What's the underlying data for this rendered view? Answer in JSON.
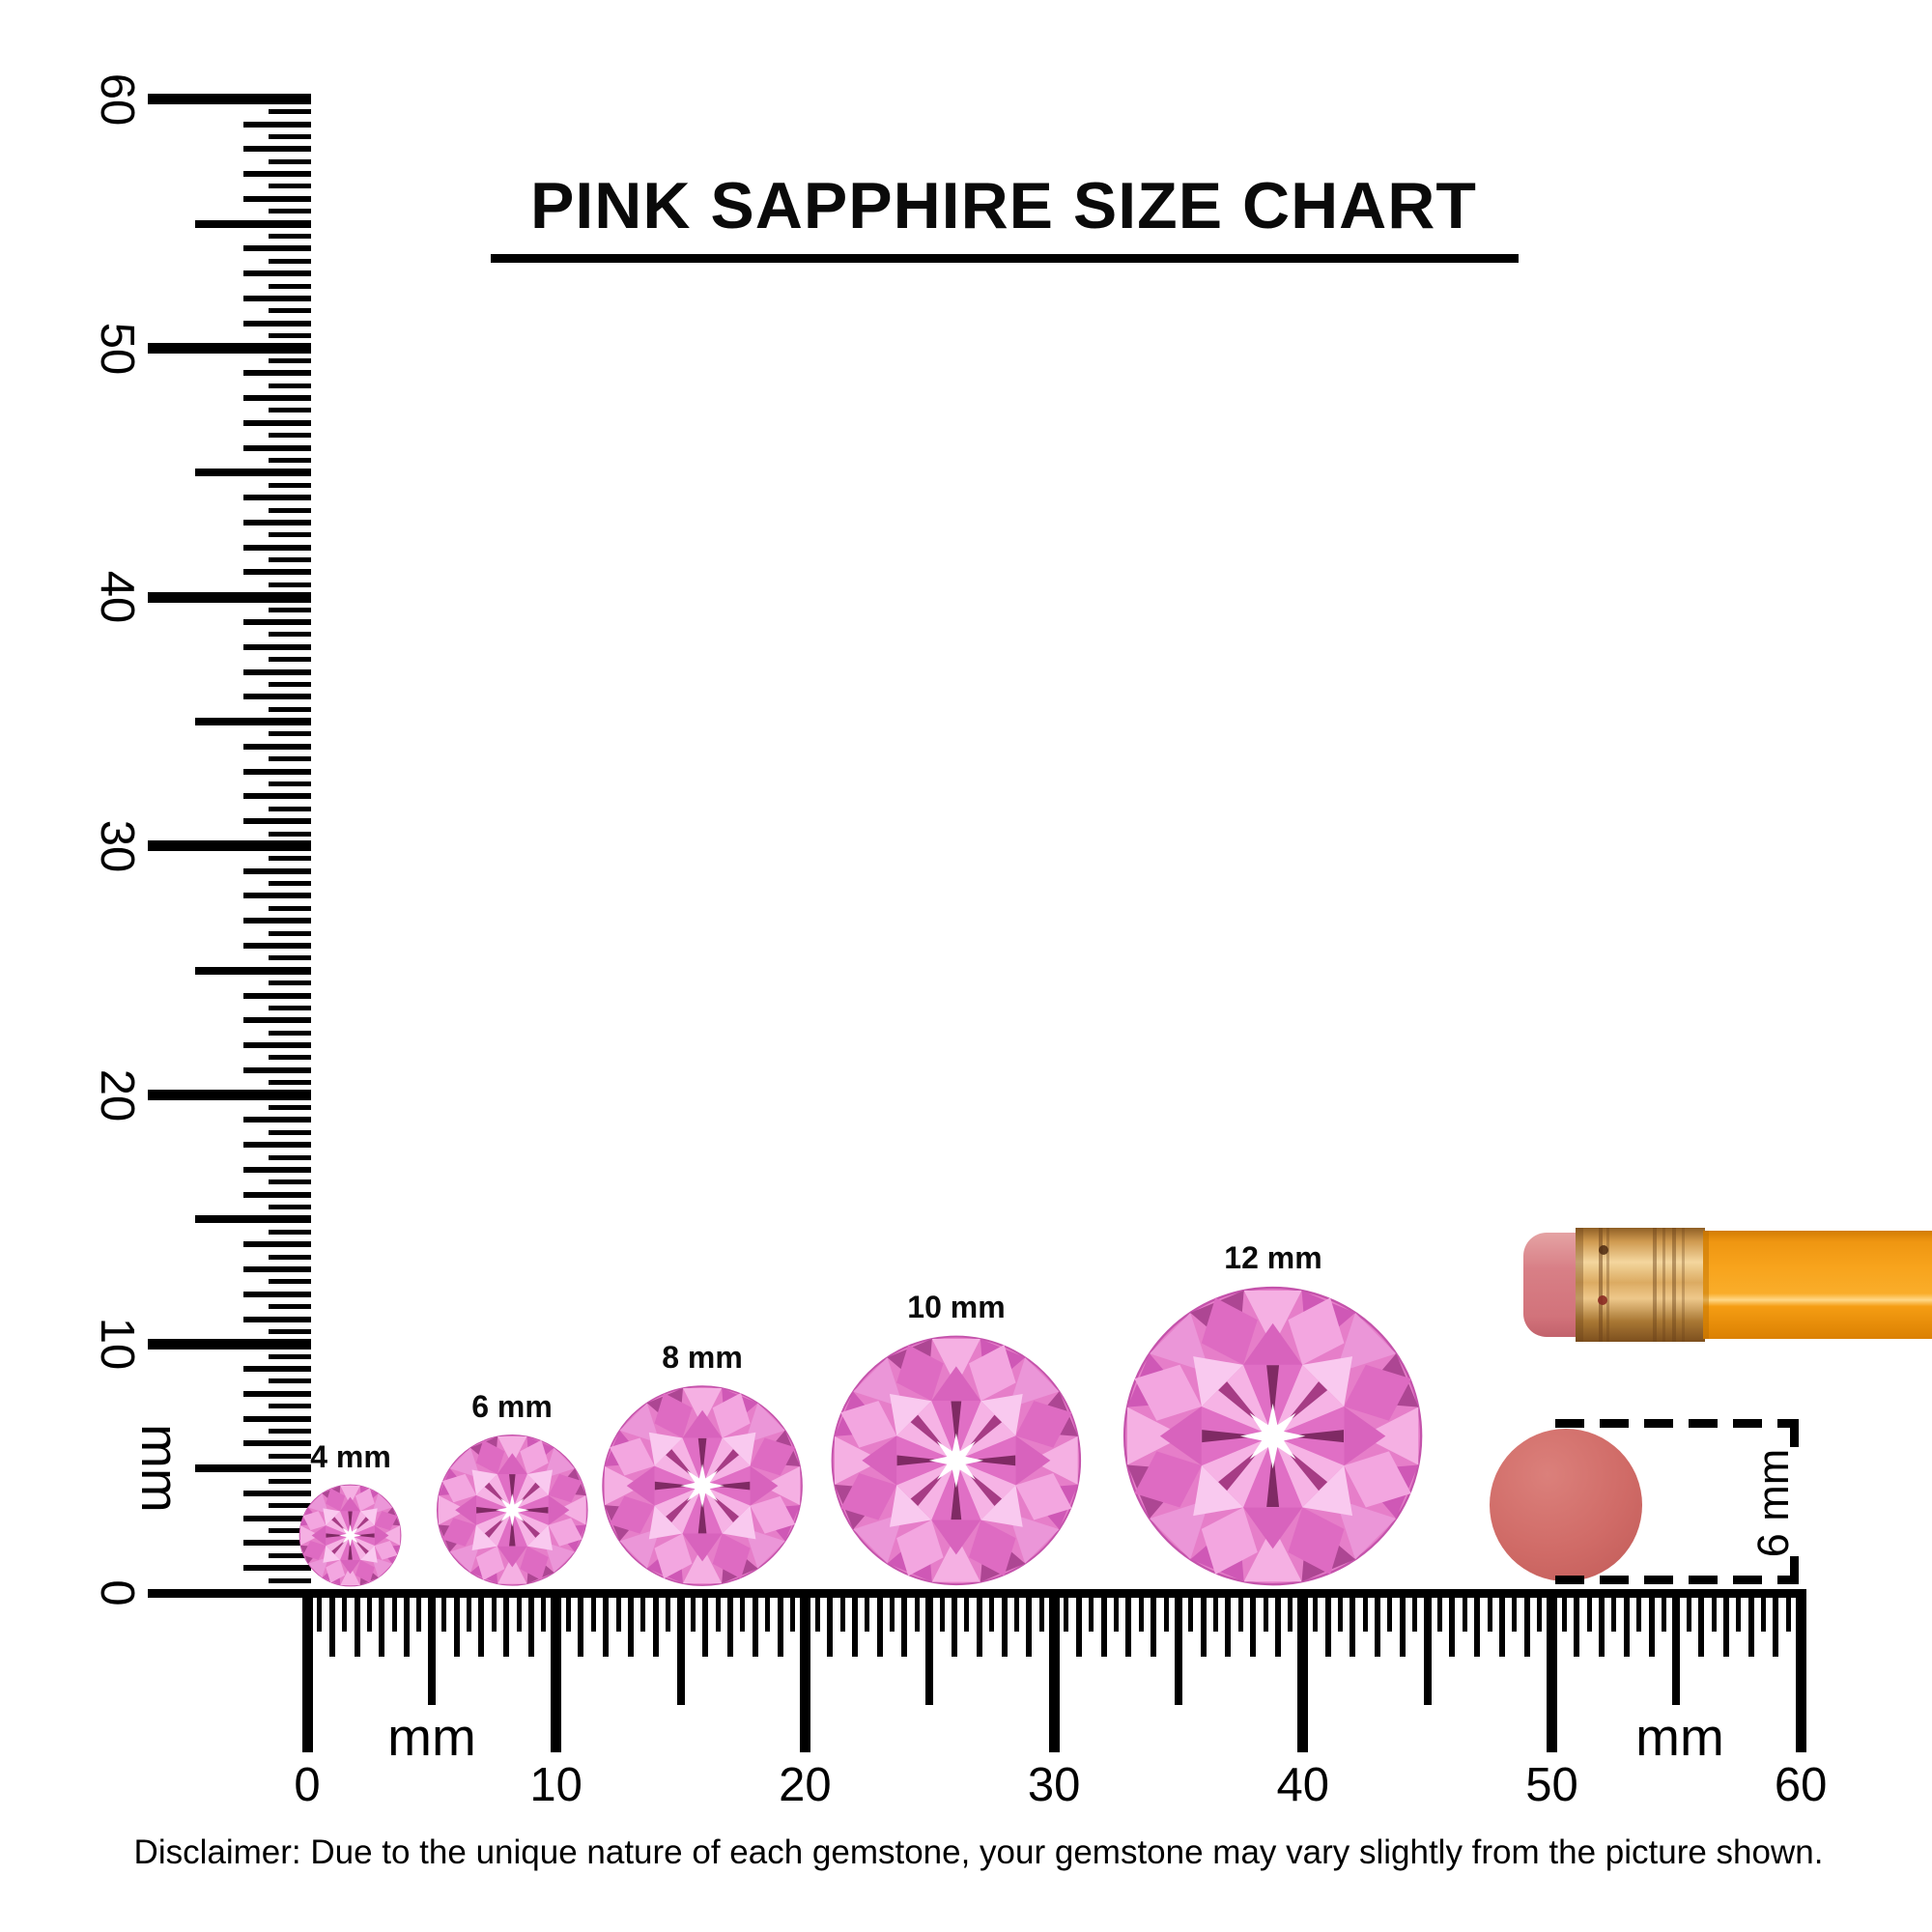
{
  "title": "PINK SAPPHIRE SIZE CHART",
  "disclaimer": "Disclaimer: Due to the unique nature of each gemstone, your gemstone may vary slightly from the picture shown.",
  "rulers": {
    "unit_label": "mm",
    "vertical": {
      "min_mm": 0,
      "max_mm": 60,
      "tick_step_mm": 0.5,
      "major_labels": [
        "0",
        "10",
        "20",
        "30",
        "40",
        "50",
        "60"
      ]
    },
    "horizontal": {
      "min_mm": 0,
      "max_mm": 60,
      "tick_step_mm": 0.5,
      "major_labels": [
        "0",
        "10",
        "20",
        "30",
        "40",
        "50",
        "60"
      ]
    }
  },
  "gems": [
    {
      "label": "4 mm",
      "size_mm": 4
    },
    {
      "label": "6 mm",
      "size_mm": 6
    },
    {
      "label": "8 mm",
      "size_mm": 8
    },
    {
      "label": "10 mm",
      "size_mm": 10
    },
    {
      "label": "12 mm",
      "size_mm": 12
    }
  ],
  "eraser_reference": {
    "label": "6 mm",
    "diameter_mm": 6,
    "color": "#d06b67"
  },
  "pencil": {
    "body_color": "#f89c10",
    "ferrule_color": "#d9a55c",
    "eraser_color": "#d5767f"
  },
  "gem_palette": {
    "base": "#e67ec9",
    "rim": [
      "#f5b0e3",
      "#cf58b6",
      "#eb96d8",
      "#ad4693"
    ],
    "bezel": [
      "#f3a6e0",
      "#de6bc2"
    ],
    "star": [
      "#f9c9ef",
      "#d863bd"
    ],
    "table": "#ee92d6",
    "fan": [
      "#f6b3e5",
      "#e06fc5"
    ],
    "arrow": "#a63c85",
    "arrow_dark": "#7f2a64",
    "center": "#ffffff",
    "girdle": "#c453ab"
  },
  "chart_data": {
    "type": "size-comparison",
    "title": "PINK SAPPHIRE SIZE CHART",
    "unit": "mm",
    "axis": {
      "x_range_mm": [
        0,
        60
      ],
      "y_range_mm": [
        0,
        60
      ],
      "tick_step_mm": 0.5,
      "major_tick_mm": 10,
      "medium_tick_mm": 5
    },
    "gem_sizes_mm": [
      4,
      6,
      8,
      10,
      12
    ],
    "gem_labels": [
      "4 mm",
      "6 mm",
      "8 mm",
      "10 mm",
      "12 mm"
    ],
    "reference_objects": [
      {
        "name": "pencil with eraser",
        "position": "right"
      },
      {
        "name": "pencil eraser end (top view)",
        "diameter_mm": 6,
        "label": "6 mm"
      }
    ]
  }
}
